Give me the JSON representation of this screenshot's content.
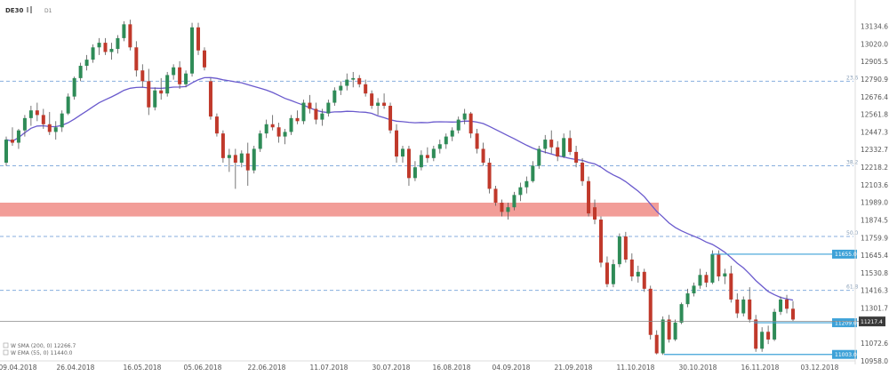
{
  "header": {
    "symbol": "DE30",
    "timeframe": "D1",
    "chart_icon": "candles-icon"
  },
  "legend": [
    {
      "label": "W SMA (200, 0) 12266.7",
      "color": "#6a5acd"
    },
    {
      "label": "W EMA (55, 0) 11440.0",
      "color": "#6a5acd"
    }
  ],
  "colors": {
    "bull": "#2e8b57",
    "bear": "#c0392b",
    "sma": "#6a5acd",
    "fib": "#87aede",
    "zone": "#f08c86",
    "level": "#3ea2d8",
    "price_tag": "#3a3a3a"
  },
  "chart_data": {
    "type": "candlestick",
    "title": "",
    "xlabel": "",
    "ylabel": "",
    "ylim": [
      10958.0,
      13220.0
    ],
    "y_ticks": [
      13134.6,
      13020.0,
      12905.5,
      12790.9,
      12676.4,
      12561.8,
      12447.3,
      12332.7,
      12218.2,
      12103.6,
      11989.0,
      11874.5,
      11759.9,
      11645.4,
      11530.8,
      11416.3,
      11301.7,
      11187.1,
      11072.6,
      10958.0
    ],
    "x_ticks": [
      "09.04.2018",
      "26.04.2018",
      "16.05.2018",
      "05.06.2018",
      "22.06.2018",
      "11.07.2018",
      "30.07.2018",
      "16.08.2018",
      "04.09.2018",
      "21.09.2018",
      "11.10.2018",
      "30.10.2018",
      "16.11.2018",
      "03.12.2018"
    ],
    "grid": false,
    "fib_levels": [
      {
        "label": "23.6",
        "value": 12780
      },
      {
        "label": "38.2",
        "value": 12230
      },
      {
        "label": "50.0",
        "value": 11770
      },
      {
        "label": "61.8",
        "value": 11420
      }
    ],
    "zone": {
      "from": 11900,
      "to": 11990
    },
    "current_price": 11217.4,
    "levels": [
      {
        "label": "11655.0",
        "value": 11655
      },
      {
        "label": "11209.0",
        "value": 11209
      },
      {
        "label": "11003.0",
        "value": 11003
      }
    ],
    "candles": [
      {
        "o": 12250,
        "h": 12420,
        "l": 12230,
        "c": 12400
      },
      {
        "o": 12400,
        "h": 12480,
        "l": 12360,
        "c": 12380
      },
      {
        "o": 12380,
        "h": 12470,
        "l": 12340,
        "c": 12460
      },
      {
        "o": 12460,
        "h": 12560,
        "l": 12420,
        "c": 12540
      },
      {
        "o": 12540,
        "h": 12620,
        "l": 12490,
        "c": 12590
      },
      {
        "o": 12590,
        "h": 12640,
        "l": 12520,
        "c": 12560
      },
      {
        "o": 12560,
        "h": 12600,
        "l": 12470,
        "c": 12500
      },
      {
        "o": 12500,
        "h": 12580,
        "l": 12430,
        "c": 12450
      },
      {
        "o": 12450,
        "h": 12520,
        "l": 12400,
        "c": 12480
      },
      {
        "o": 12480,
        "h": 12590,
        "l": 12450,
        "c": 12570
      },
      {
        "o": 12570,
        "h": 12700,
        "l": 12560,
        "c": 12680
      },
      {
        "o": 12680,
        "h": 12810,
        "l": 12660,
        "c": 12800
      },
      {
        "o": 12800,
        "h": 12900,
        "l": 12780,
        "c": 12880
      },
      {
        "o": 12880,
        "h": 12950,
        "l": 12850,
        "c": 12920
      },
      {
        "o": 12920,
        "h": 13020,
        "l": 12900,
        "c": 13000
      },
      {
        "o": 13000,
        "h": 13060,
        "l": 12950,
        "c": 13030
      },
      {
        "o": 13030,
        "h": 13060,
        "l": 12950,
        "c": 12970
      },
      {
        "o": 12970,
        "h": 13030,
        "l": 12920,
        "c": 12990
      },
      {
        "o": 12990,
        "h": 13080,
        "l": 12960,
        "c": 13060
      },
      {
        "o": 13060,
        "h": 13170,
        "l": 13040,
        "c": 13150
      },
      {
        "o": 13150,
        "h": 13180,
        "l": 12980,
        "c": 13000
      },
      {
        "o": 13000,
        "h": 13040,
        "l": 12810,
        "c": 12850
      },
      {
        "o": 12850,
        "h": 12890,
        "l": 12740,
        "c": 12780
      },
      {
        "o": 12780,
        "h": 12860,
        "l": 12560,
        "c": 12610
      },
      {
        "o": 12610,
        "h": 12740,
        "l": 12590,
        "c": 12720
      },
      {
        "o": 12720,
        "h": 12800,
        "l": 12660,
        "c": 12700
      },
      {
        "o": 12700,
        "h": 12840,
        "l": 12680,
        "c": 12820
      },
      {
        "o": 12820,
        "h": 12890,
        "l": 12790,
        "c": 12870
      },
      {
        "o": 12870,
        "h": 12910,
        "l": 12730,
        "c": 12760
      },
      {
        "o": 12760,
        "h": 12850,
        "l": 12740,
        "c": 12830
      },
      {
        "o": 12830,
        "h": 13160,
        "l": 12810,
        "c": 13130
      },
      {
        "o": 13130,
        "h": 13160,
        "l": 12950,
        "c": 12980
      },
      {
        "o": 12980,
        "h": 13000,
        "l": 12850,
        "c": 12870
      },
      {
        "o": 12780,
        "h": 12800,
        "l": 12530,
        "c": 12550
      },
      {
        "o": 12550,
        "h": 12570,
        "l": 12420,
        "c": 12440
      },
      {
        "o": 12440,
        "h": 12460,
        "l": 12250,
        "c": 12280
      },
      {
        "o": 12280,
        "h": 12340,
        "l": 12190,
        "c": 12300
      },
      {
        "o": 12300,
        "h": 12340,
        "l": 12080,
        "c": 12250
      },
      {
        "o": 12250,
        "h": 12330,
        "l": 12220,
        "c": 12310
      },
      {
        "o": 12310,
        "h": 12380,
        "l": 12100,
        "c": 12200
      },
      {
        "o": 12200,
        "h": 12360,
        "l": 12180,
        "c": 12340
      },
      {
        "o": 12340,
        "h": 12460,
        "l": 12320,
        "c": 12440
      },
      {
        "o": 12440,
        "h": 12530,
        "l": 12410,
        "c": 12500
      },
      {
        "o": 12500,
        "h": 12560,
        "l": 12460,
        "c": 12480
      },
      {
        "o": 12480,
        "h": 12510,
        "l": 12380,
        "c": 12420
      },
      {
        "o": 12420,
        "h": 12470,
        "l": 12370,
        "c": 12450
      },
      {
        "o": 12450,
        "h": 12560,
        "l": 12430,
        "c": 12540
      },
      {
        "o": 12540,
        "h": 12590,
        "l": 12500,
        "c": 12520
      },
      {
        "o": 12520,
        "h": 12660,
        "l": 12500,
        "c": 12640
      },
      {
        "o": 12640,
        "h": 12690,
        "l": 12570,
        "c": 12600
      },
      {
        "o": 12600,
        "h": 12640,
        "l": 12500,
        "c": 12530
      },
      {
        "o": 12530,
        "h": 12600,
        "l": 12490,
        "c": 12570
      },
      {
        "o": 12570,
        "h": 12660,
        "l": 12550,
        "c": 12640
      },
      {
        "o": 12640,
        "h": 12740,
        "l": 12620,
        "c": 12720
      },
      {
        "o": 12720,
        "h": 12780,
        "l": 12690,
        "c": 12750
      },
      {
        "o": 12750,
        "h": 12830,
        "l": 12720,
        "c": 12790
      },
      {
        "o": 12790,
        "h": 12840,
        "l": 12740,
        "c": 12800
      },
      {
        "o": 12800,
        "h": 12820,
        "l": 12740,
        "c": 12760
      },
      {
        "o": 12760,
        "h": 12790,
        "l": 12680,
        "c": 12700
      },
      {
        "o": 12700,
        "h": 12720,
        "l": 12600,
        "c": 12620
      },
      {
        "o": 12620,
        "h": 12670,
        "l": 12560,
        "c": 12640
      },
      {
        "o": 12640,
        "h": 12700,
        "l": 12600,
        "c": 12620
      },
      {
        "o": 12620,
        "h": 12640,
        "l": 12440,
        "c": 12460
      },
      {
        "o": 12460,
        "h": 12500,
        "l": 12250,
        "c": 12290
      },
      {
        "o": 12290,
        "h": 12360,
        "l": 12250,
        "c": 12340
      },
      {
        "o": 12340,
        "h": 12360,
        "l": 12100,
        "c": 12150
      },
      {
        "o": 12150,
        "h": 12260,
        "l": 12130,
        "c": 12220
      },
      {
        "o": 12220,
        "h": 12330,
        "l": 12200,
        "c": 12300
      },
      {
        "o": 12300,
        "h": 12350,
        "l": 12250,
        "c": 12280
      },
      {
        "o": 12280,
        "h": 12360,
        "l": 12260,
        "c": 12340
      },
      {
        "o": 12340,
        "h": 12400,
        "l": 12310,
        "c": 12370
      },
      {
        "o": 12370,
        "h": 12440,
        "l": 12340,
        "c": 12420
      },
      {
        "o": 12420,
        "h": 12480,
        "l": 12390,
        "c": 12460
      },
      {
        "o": 12460,
        "h": 12550,
        "l": 12440,
        "c": 12530
      },
      {
        "o": 12530,
        "h": 12600,
        "l": 12500,
        "c": 12570
      },
      {
        "o": 12570,
        "h": 12580,
        "l": 12410,
        "c": 12440
      },
      {
        "o": 12440,
        "h": 12470,
        "l": 12310,
        "c": 12340
      },
      {
        "o": 12340,
        "h": 12380,
        "l": 12230,
        "c": 12250
      },
      {
        "o": 12250,
        "h": 12280,
        "l": 12050,
        "c": 12080
      },
      {
        "o": 12080,
        "h": 12100,
        "l": 11970,
        "c": 11990
      },
      {
        "o": 11990,
        "h": 12010,
        "l": 11900,
        "c": 11930
      },
      {
        "o": 11930,
        "h": 11990,
        "l": 11880,
        "c": 11960
      },
      {
        "o": 11960,
        "h": 12060,
        "l": 11940,
        "c": 12040
      },
      {
        "o": 12040,
        "h": 12120,
        "l": 12000,
        "c": 12090
      },
      {
        "o": 12090,
        "h": 12160,
        "l": 12050,
        "c": 12130
      },
      {
        "o": 12130,
        "h": 12260,
        "l": 12120,
        "c": 12230
      },
      {
        "o": 12230,
        "h": 12360,
        "l": 12210,
        "c": 12340
      },
      {
        "o": 12340,
        "h": 12430,
        "l": 12310,
        "c": 12400
      },
      {
        "o": 12400,
        "h": 12460,
        "l": 12310,
        "c": 12350
      },
      {
        "o": 12350,
        "h": 12390,
        "l": 12260,
        "c": 12290
      },
      {
        "o": 12290,
        "h": 12440,
        "l": 12280,
        "c": 12410
      },
      {
        "o": 12410,
        "h": 12460,
        "l": 12300,
        "c": 12320
      },
      {
        "o": 12320,
        "h": 12360,
        "l": 12220,
        "c": 12250
      },
      {
        "o": 12250,
        "h": 12280,
        "l": 12100,
        "c": 12130
      },
      {
        "o": 12130,
        "h": 12160,
        "l": 11900,
        "c": 11920
      },
      {
        "o": 11960,
        "h": 12010,
        "l": 11850,
        "c": 11880
      },
      {
        "o": 11880,
        "h": 11900,
        "l": 11570,
        "c": 11600
      },
      {
        "o": 11600,
        "h": 11640,
        "l": 11440,
        "c": 11460
      },
      {
        "o": 11460,
        "h": 11620,
        "l": 11440,
        "c": 11590
      },
      {
        "o": 11590,
        "h": 11790,
        "l": 11570,
        "c": 11770
      },
      {
        "o": 11770,
        "h": 11800,
        "l": 11600,
        "c": 11620
      },
      {
        "o": 11620,
        "h": 11660,
        "l": 11480,
        "c": 11510
      },
      {
        "o": 11510,
        "h": 11580,
        "l": 11470,
        "c": 11540
      },
      {
        "o": 11540,
        "h": 11560,
        "l": 11410,
        "c": 11430
      },
      {
        "o": 11430,
        "h": 11450,
        "l": 11100,
        "c": 11130
      },
      {
        "o": 11130,
        "h": 11160,
        "l": 11003,
        "c": 11010
      },
      {
        "o": 11010,
        "h": 11250,
        "l": 11000,
        "c": 11230
      },
      {
        "o": 11230,
        "h": 11260,
        "l": 11080,
        "c": 11100
      },
      {
        "o": 11100,
        "h": 11230,
        "l": 11090,
        "c": 11210
      },
      {
        "o": 11210,
        "h": 11340,
        "l": 11200,
        "c": 11330
      },
      {
        "o": 11330,
        "h": 11430,
        "l": 11310,
        "c": 11400
      },
      {
        "o": 11400,
        "h": 11470,
        "l": 11380,
        "c": 11450
      },
      {
        "o": 11450,
        "h": 11560,
        "l": 11430,
        "c": 11520
      },
      {
        "o": 11520,
        "h": 11540,
        "l": 11440,
        "c": 11470
      },
      {
        "o": 11470,
        "h": 11680,
        "l": 11460,
        "c": 11655
      },
      {
        "o": 11655,
        "h": 11680,
        "l": 11480,
        "c": 11510
      },
      {
        "o": 11510,
        "h": 11560,
        "l": 11460,
        "c": 11530
      },
      {
        "o": 11530,
        "h": 11580,
        "l": 11340,
        "c": 11360
      },
      {
        "o": 11360,
        "h": 11400,
        "l": 11240,
        "c": 11270
      },
      {
        "o": 11270,
        "h": 11380,
        "l": 11250,
        "c": 11360
      },
      {
        "o": 11360,
        "h": 11440,
        "l": 11210,
        "c": 11230
      },
      {
        "o": 11230,
        "h": 11260,
        "l": 11020,
        "c": 11040
      },
      {
        "o": 11040,
        "h": 11180,
        "l": 11020,
        "c": 11150
      },
      {
        "o": 11150,
        "h": 11190,
        "l": 11070,
        "c": 11100
      },
      {
        "o": 11100,
        "h": 11300,
        "l": 11090,
        "c": 11280
      },
      {
        "o": 11280,
        "h": 11380,
        "l": 11260,
        "c": 11360
      },
      {
        "o": 11360,
        "h": 11390,
        "l": 11270,
        "c": 11300
      },
      {
        "o": 11300,
        "h": 11350,
        "l": 11220,
        "c": 11230
      }
    ]
  }
}
